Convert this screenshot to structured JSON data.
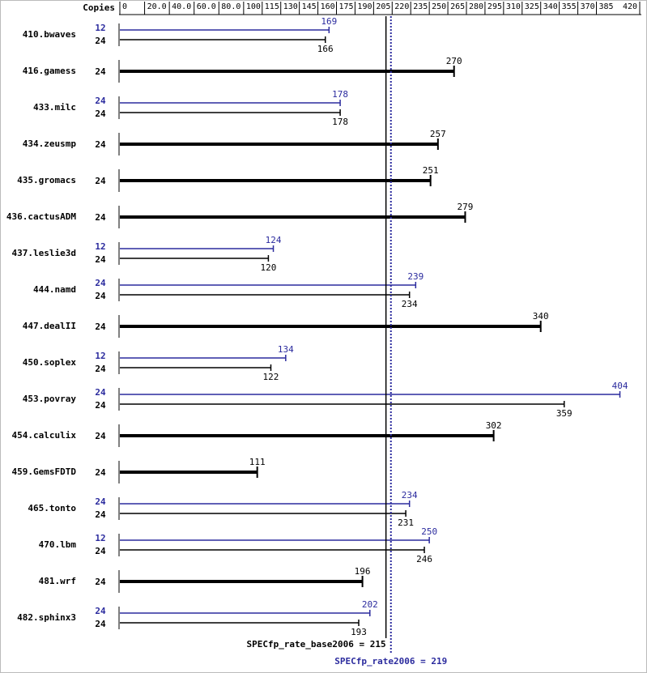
{
  "chart_data": {
    "type": "bar",
    "orientation": "horizontal",
    "copies_header": "Copies",
    "categories": [
      "410.bwaves",
      "416.gamess",
      "433.milc",
      "434.zeusmp",
      "435.gromacs",
      "436.cactusADM",
      "437.leslie3d",
      "444.namd",
      "447.dealII",
      "450.soplex",
      "453.povray",
      "454.calculix",
      "459.GemsFDTD",
      "465.tonto",
      "470.lbm",
      "481.wrf",
      "482.sphinx3"
    ],
    "series": [
      {
        "color": "#000000",
        "copies": [
          24,
          24,
          24,
          24,
          24,
          24,
          24,
          24,
          24,
          24,
          24,
          24,
          24,
          24,
          24,
          24,
          24
        ],
        "values": [
          166,
          270,
          178,
          257,
          251,
          279,
          120,
          234,
          340,
          122,
          359,
          302,
          111,
          231,
          246,
          196,
          193
        ]
      },
      {
        "color": "#2b2b9e",
        "copies": [
          12,
          null,
          24,
          null,
          null,
          null,
          12,
          24,
          null,
          12,
          24,
          null,
          null,
          24,
          12,
          null,
          24
        ],
        "values": [
          169,
          null,
          178,
          null,
          null,
          null,
          124,
          239,
          null,
          134,
          404,
          null,
          null,
          234,
          250,
          null,
          202
        ]
      }
    ],
    "xlim": [
      0,
      420
    ],
    "xticks": [
      0,
      {
        "value": 20,
        "label": "20.0"
      },
      {
        "value": 40,
        "label": "40.0"
      },
      {
        "value": 60,
        "label": "60.0"
      },
      {
        "value": 80,
        "label": "80.0"
      },
      100,
      115,
      130,
      145,
      160,
      175,
      190,
      205,
      220,
      235,
      250,
      265,
      280,
      295,
      310,
      325,
      340,
      355,
      370,
      385,
      420
    ],
    "ref_lines": [
      {
        "label": "SPECfp_rate_base2006 = 215",
        "value": 215,
        "color": "#000000",
        "style": "solid"
      },
      {
        "label": "SPECfp_rate2006 = 219",
        "value": 219,
        "color": "#2b2b9e",
        "style": "dotted"
      }
    ]
  }
}
